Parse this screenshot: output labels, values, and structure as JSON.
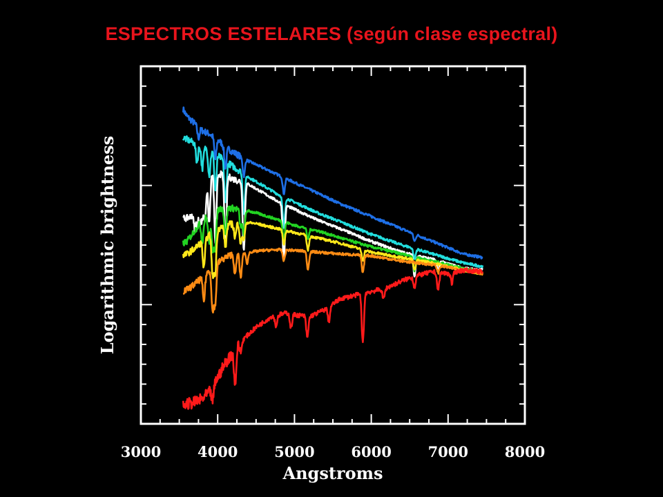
{
  "title": "ESPECTROS ESTELARES (según clase espectral)",
  "colors": {
    "background": "#000000",
    "title": "#e8141c",
    "axes": "#ffffff"
  },
  "chart_data": {
    "type": "line",
    "title": "ESPECTROS ESTELARES (según clase espectral)",
    "xlabel": "Angstroms",
    "ylabel": "Logarithmic brightness",
    "xlim": [
      3000,
      8000
    ],
    "ylim": [
      0,
      1
    ],
    "xticks": [
      3000,
      4000,
      5000,
      6000,
      7000,
      8000
    ],
    "xtick_labels": [
      "3000",
      "4000",
      "5000",
      "6000",
      "7000",
      "8000"
    ],
    "y_scale": "log",
    "grid": false,
    "legend": "none",
    "series": [
      {
        "color": "#1e6fe6",
        "x": [
          3550,
          3600,
          3700,
          3800,
          3900,
          4000,
          4100,
          4200,
          4400,
          4600,
          4800,
          5000,
          5300,
          5600,
          6000,
          6400,
          6800,
          7200,
          7450
        ],
        "y": [
          0.88,
          0.86,
          0.84,
          0.82,
          0.81,
          0.795,
          0.775,
          0.76,
          0.735,
          0.715,
          0.695,
          0.675,
          0.645,
          0.615,
          0.58,
          0.545,
          0.51,
          0.475,
          0.465
        ],
        "absorption": [
          [
            3750,
            0.03
          ],
          [
            3970,
            0.06
          ],
          [
            4101,
            0.06
          ],
          [
            4340,
            0.05
          ],
          [
            4861,
            0.045
          ],
          [
            6563,
            0.02
          ]
        ]
      },
      {
        "color": "#22dede",
        "x": [
          3550,
          3600,
          3700,
          3800,
          3900,
          4000,
          4100,
          4200,
          4400,
          4600,
          4800,
          5000,
          5300,
          5600,
          6000,
          6400,
          6800,
          7200,
          7450
        ],
        "y": [
          0.8,
          0.795,
          0.785,
          0.775,
          0.765,
          0.75,
          0.735,
          0.72,
          0.69,
          0.665,
          0.64,
          0.62,
          0.59,
          0.565,
          0.53,
          0.5,
          0.475,
          0.45,
          0.44
        ],
        "absorption": [
          [
            3730,
            0.05
          ],
          [
            3800,
            0.06
          ],
          [
            3890,
            0.07
          ],
          [
            3970,
            0.1
          ],
          [
            4101,
            0.12
          ],
          [
            4340,
            0.11
          ],
          [
            4861,
            0.09
          ],
          [
            6563,
            0.03
          ]
        ]
      },
      {
        "color": "#ffffff",
        "x": [
          3550,
          3600,
          3650,
          3700,
          3750,
          3800,
          3850,
          3900,
          4000,
          4100,
          4200,
          4400,
          4600,
          4800,
          5000,
          5300,
          5600,
          6000,
          6400,
          6800,
          7200,
          7450
        ],
        "y": [
          0.575,
          0.575,
          0.58,
          0.6,
          0.63,
          0.66,
          0.68,
          0.695,
          0.7,
          0.695,
          0.685,
          0.67,
          0.645,
          0.62,
          0.6,
          0.57,
          0.545,
          0.51,
          0.48,
          0.46,
          0.435,
          0.43
        ],
        "absorption": [
          [
            3700,
            0.05
          ],
          [
            3735,
            0.06
          ],
          [
            3770,
            0.07
          ],
          [
            3800,
            0.08
          ],
          [
            3835,
            0.1
          ],
          [
            3889,
            0.13
          ],
          [
            3970,
            0.19
          ],
          [
            4101,
            0.2
          ],
          [
            4340,
            0.19
          ],
          [
            4861,
            0.16
          ],
          [
            6563,
            0.06
          ],
          [
            6870,
            0.03
          ]
        ]
      },
      {
        "color": "#22d322",
        "x": [
          3550,
          3600,
          3700,
          3800,
          3900,
          4000,
          4100,
          4300,
          4500,
          4800,
          5000,
          5300,
          5600,
          6000,
          6400,
          6800,
          7200,
          7450
        ],
        "y": [
          0.505,
          0.51,
          0.54,
          0.57,
          0.585,
          0.6,
          0.605,
          0.6,
          0.59,
          0.57,
          0.555,
          0.54,
          0.52,
          0.495,
          0.475,
          0.455,
          0.435,
          0.425
        ],
        "absorption": [
          [
            3800,
            0.06
          ],
          [
            3889,
            0.08
          ],
          [
            3934,
            0.1
          ],
          [
            3968,
            0.1
          ],
          [
            4101,
            0.08
          ],
          [
            4300,
            0.05
          ],
          [
            4340,
            0.07
          ],
          [
            4861,
            0.05
          ],
          [
            5175,
            0.03
          ],
          [
            6563,
            0.04
          ]
        ]
      },
      {
        "color": "#ffe81a",
        "x": [
          3550,
          3600,
          3700,
          3800,
          3900,
          4000,
          4100,
          4200,
          4300,
          4500,
          4800,
          5000,
          5300,
          5600,
          6000,
          6400,
          6800,
          7200,
          7450
        ],
        "y": [
          0.47,
          0.475,
          0.49,
          0.51,
          0.53,
          0.545,
          0.555,
          0.56,
          0.565,
          0.56,
          0.545,
          0.535,
          0.52,
          0.505,
          0.48,
          0.465,
          0.45,
          0.43,
          0.42
        ],
        "absorption": [
          [
            3820,
            0.08
          ],
          [
            3934,
            0.12
          ],
          [
            3968,
            0.12
          ],
          [
            4101,
            0.06
          ],
          [
            4227,
            0.04
          ],
          [
            4300,
            0.06
          ],
          [
            4340,
            0.05
          ],
          [
            4861,
            0.04
          ],
          [
            5175,
            0.04
          ],
          [
            5890,
            0.03
          ],
          [
            6563,
            0.03
          ]
        ]
      },
      {
        "color": "#ff8c14",
        "x": [
          3550,
          3600,
          3700,
          3800,
          3900,
          4000,
          4100,
          4200,
          4400,
          4600,
          4800,
          5000,
          5300,
          5600,
          6000,
          6400,
          6800,
          7200,
          7450
        ],
        "y": [
          0.37,
          0.375,
          0.39,
          0.41,
          0.43,
          0.45,
          0.465,
          0.475,
          0.48,
          0.485,
          0.487,
          0.485,
          0.48,
          0.475,
          0.47,
          0.455,
          0.445,
          0.43,
          0.42
        ],
        "absorption": [
          [
            3820,
            0.07
          ],
          [
            3934,
            0.12
          ],
          [
            3968,
            0.11
          ],
          [
            4227,
            0.06
          ],
          [
            4300,
            0.07
          ],
          [
            4383,
            0.03
          ],
          [
            4861,
            0.03
          ],
          [
            5175,
            0.05
          ],
          [
            5890,
            0.05
          ],
          [
            6870,
            0.02
          ]
        ]
      },
      {
        "color": "#ff1a1a",
        "x": [
          3550,
          3600,
          3700,
          3800,
          3900,
          4000,
          4100,
          4200,
          4300,
          4400,
          4500,
          4600,
          4700,
          4800,
          4900,
          5000,
          5200,
          5400,
          5600,
          5800,
          6000,
          6200,
          6400,
          6600,
          6800,
          7000,
          7200,
          7450
        ],
        "y": [
          0.05,
          0.055,
          0.06,
          0.07,
          0.09,
          0.13,
          0.17,
          0.2,
          0.23,
          0.25,
          0.27,
          0.285,
          0.3,
          0.305,
          0.31,
          0.305,
          0.3,
          0.32,
          0.35,
          0.36,
          0.37,
          0.38,
          0.4,
          0.415,
          0.425,
          0.42,
          0.43,
          0.425
        ],
        "absorption": [
          [
            3934,
            0.04
          ],
          [
            4227,
            0.1
          ],
          [
            4300,
            0.03
          ],
          [
            4760,
            0.03
          ],
          [
            4955,
            0.04
          ],
          [
            5167,
            0.06
          ],
          [
            5448,
            0.04
          ],
          [
            5890,
            0.14
          ],
          [
            6160,
            0.03
          ],
          [
            6563,
            0.03
          ],
          [
            6870,
            0.05
          ],
          [
            7050,
            0.03
          ]
        ]
      }
    ]
  }
}
